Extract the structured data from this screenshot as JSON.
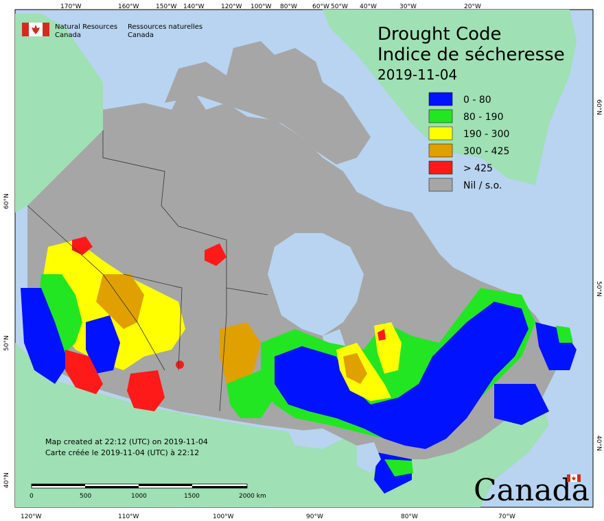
{
  "title": "Drought Code",
  "title_fr": "Indice de sécheresse",
  "date": "2019-11-04",
  "agency": {
    "en_line1": "Natural Resources",
    "en_line2": "Canada",
    "fr_line1": "Ressources naturelles",
    "fr_line2": "Canada"
  },
  "legend": [
    {
      "label": "0 - 80",
      "color": "#0012ff"
    },
    {
      "label": "80 - 190",
      "color": "#22e622"
    },
    {
      "label": "190 - 300",
      "color": "#ffff00"
    },
    {
      "label": "300 - 425",
      "color": "#e0a000"
    },
    {
      "label": "> 425",
      "color": "#ff1a1a"
    },
    {
      "label": "Nil / s.o.",
      "color": "#a6a6a6"
    }
  ],
  "credits": {
    "line1": "Map created at 22:12 (UTC) on 2019-11-04",
    "line2": "Carte créée le 2019-11-04 (UTC) à 22:12"
  },
  "scale_bar": {
    "labels": [
      "0",
      "500",
      "1000",
      "1500",
      "2000  km"
    ]
  },
  "top_ticks": [
    "170°W",
    "160°W",
    "150°W",
    "140°W",
    "120°W",
    "100°W",
    "80°W",
    "60°W",
    "50°W",
    "40°W",
    "30°W",
    "20°W"
  ],
  "bottom_ticks": [
    "120°W",
    "110°W",
    "100°W",
    "90°W",
    "80°W",
    "70°W"
  ],
  "left_ticks": [
    "60°N",
    "50°N",
    "40°N"
  ],
  "right_ticks": [
    "60°N",
    "50°N",
    "40°N"
  ],
  "wordmark": "Canada",
  "colors": {
    "ocean": "#b8d4f0",
    "land_foreign": "#9fe0b4",
    "nil": "#a6a6a6"
  }
}
